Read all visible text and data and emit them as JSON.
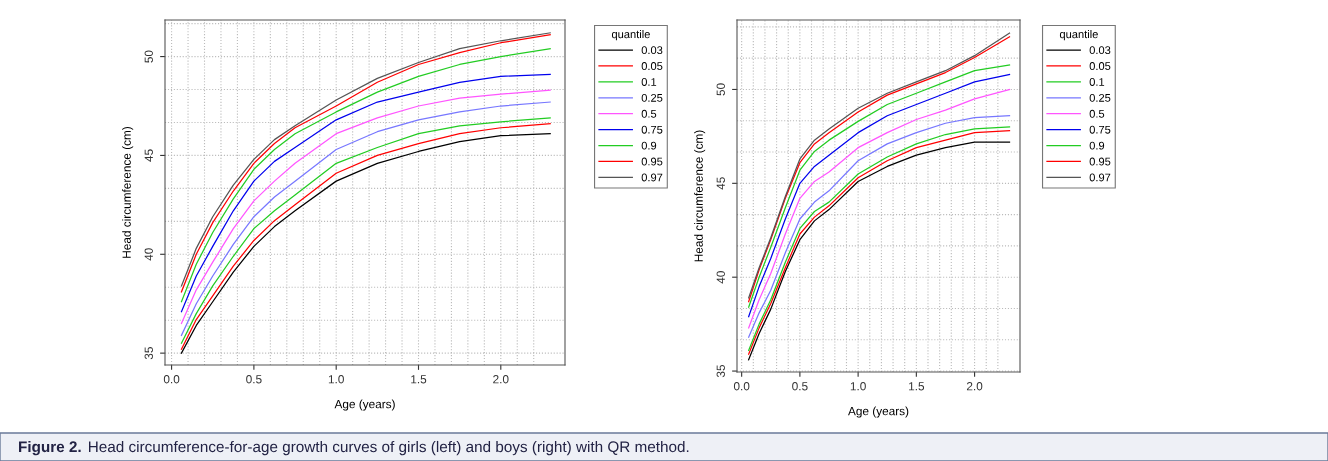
{
  "chart_data": [
    {
      "type": "line",
      "xlabel": "Age (years)",
      "ylabel": "Head circumference (cm)",
      "legend_title": "quantile",
      "legend": "right",
      "grid": true,
      "line_style": "solid",
      "x": [
        0.06,
        0.15,
        0.25,
        0.375,
        0.5,
        0.625,
        0.75,
        1.0,
        1.25,
        1.5,
        1.75,
        2.0,
        2.3
      ],
      "xlim": [
        -0.04,
        2.39
      ],
      "ylim": [
        34.4,
        51.85
      ],
      "xticks": [
        {
          "value": 0,
          "label": "0.0"
        },
        {
          "value": 0.5,
          "label": "0.5"
        },
        {
          "value": 1,
          "label": "1.0"
        },
        {
          "value": 1.5,
          "label": "1.5"
        },
        {
          "value": 2,
          "label": "2.0"
        }
      ],
      "yticks": [
        35,
        40,
        45,
        50
      ],
      "series": [
        {
          "name": "0.03",
          "color": "#000000",
          "values": [
            35.0,
            36.4,
            37.6,
            39.1,
            40.4,
            41.4,
            42.2,
            43.7,
            44.6,
            45.2,
            45.7,
            46.0,
            46.1
          ]
        },
        {
          "name": "0.05",
          "color": "#ff0000",
          "values": [
            35.2,
            36.7,
            37.9,
            39.4,
            40.7,
            41.7,
            42.5,
            44.1,
            45.0,
            45.6,
            46.1,
            46.4,
            46.6
          ]
        },
        {
          "name": "0.1",
          "color": "#22cc22",
          "values": [
            35.5,
            37.0,
            38.4,
            39.9,
            41.3,
            42.2,
            43.0,
            44.6,
            45.4,
            46.1,
            46.5,
            46.7,
            46.9
          ]
        },
        {
          "name": "0.25",
          "color": "#7777ff",
          "values": [
            35.9,
            37.5,
            38.9,
            40.5,
            41.9,
            42.9,
            43.7,
            45.3,
            46.2,
            46.8,
            47.2,
            47.5,
            47.7
          ]
        },
        {
          "name": "0.5",
          "color": "#ff55ff",
          "values": [
            36.5,
            38.2,
            39.6,
            41.3,
            42.7,
            43.7,
            44.6,
            46.1,
            46.9,
            47.5,
            47.9,
            48.1,
            48.3
          ]
        },
        {
          "name": "0.75",
          "color": "#0000ee",
          "values": [
            37.1,
            38.9,
            40.4,
            42.2,
            43.7,
            44.7,
            45.4,
            46.8,
            47.7,
            48.2,
            48.7,
            49.0,
            49.1
          ]
        },
        {
          "name": "0.9",
          "color": "#22cc22",
          "values": [
            37.6,
            39.5,
            41.1,
            42.8,
            44.3,
            45.3,
            46.1,
            47.2,
            48.2,
            49.0,
            49.6,
            50.0,
            50.4
          ]
        },
        {
          "name": "0.95",
          "color": "#ff0000",
          "values": [
            38.1,
            40.0,
            41.6,
            43.2,
            44.6,
            45.6,
            46.4,
            47.5,
            48.7,
            49.6,
            50.2,
            50.7,
            51.1
          ]
        },
        {
          "name": "0.97",
          "color": "#555555",
          "values": [
            38.4,
            40.3,
            41.9,
            43.5,
            44.8,
            45.8,
            46.5,
            47.8,
            48.9,
            49.7,
            50.4,
            50.8,
            51.2
          ]
        }
      ],
      "annotations": [
        "Figure 2.",
        "Head circumference-for-age growth curves of girls (left) and boys (right) with QR method."
      ]
    },
    {
      "type": "line",
      "xlabel": "Age (years)",
      "ylabel": "Head circumference (cm)",
      "legend_title": "quantile",
      "legend": "right",
      "grid": true,
      "line_style": "solid",
      "x": [
        0.06,
        0.15,
        0.25,
        0.375,
        0.5,
        0.625,
        0.75,
        1.0,
        1.25,
        1.5,
        1.75,
        2.0,
        2.3
      ],
      "xlim": [
        -0.04,
        2.39
      ],
      "ylim": [
        34.95,
        53.7
      ],
      "xticks": [
        {
          "value": 0,
          "label": "0.0"
        },
        {
          "value": 0.5,
          "label": "0.5"
        },
        {
          "value": 1,
          "label": "1.0"
        },
        {
          "value": 1.5,
          "label": "1.5"
        },
        {
          "value": 2,
          "label": "2.0"
        }
      ],
      "yticks": [
        35,
        40,
        45,
        50
      ],
      "series": [
        {
          "name": "0.03",
          "color": "#000000",
          "values": [
            35.6,
            37.0,
            38.3,
            40.3,
            42.0,
            43.0,
            43.6,
            45.1,
            45.9,
            46.5,
            46.9,
            47.2,
            47.2
          ]
        },
        {
          "name": "0.05",
          "color": "#ff0000",
          "values": [
            35.9,
            37.3,
            38.6,
            40.5,
            42.3,
            43.2,
            43.8,
            45.3,
            46.2,
            46.9,
            47.3,
            47.7,
            47.8
          ]
        },
        {
          "name": "0.1",
          "color": "#22cc22",
          "values": [
            36.1,
            37.5,
            38.8,
            40.8,
            42.6,
            43.5,
            44.0,
            45.5,
            46.4,
            47.1,
            47.6,
            47.9,
            48.0
          ]
        },
        {
          "name": "0.25",
          "color": "#7777ff",
          "values": [
            36.8,
            38.1,
            39.3,
            41.3,
            43.1,
            44.0,
            44.6,
            46.2,
            47.1,
            47.7,
            48.2,
            48.5,
            48.6
          ]
        },
        {
          "name": "0.5",
          "color": "#ff55ff",
          "values": [
            37.3,
            38.8,
            40.2,
            42.3,
            44.2,
            45.1,
            45.6,
            46.9,
            47.7,
            48.4,
            48.9,
            49.5,
            50.0
          ]
        },
        {
          "name": "0.75",
          "color": "#0000ee",
          "values": [
            37.9,
            39.5,
            41.0,
            43.1,
            45.0,
            45.9,
            46.5,
            47.7,
            48.6,
            49.2,
            49.8,
            50.4,
            50.8
          ]
        },
        {
          "name": "0.9",
          "color": "#22cc22",
          "values": [
            38.4,
            40.0,
            41.6,
            43.7,
            45.7,
            46.7,
            47.3,
            48.3,
            49.2,
            49.8,
            50.4,
            51.0,
            51.3
          ]
        },
        {
          "name": "0.95",
          "color": "#ff0000",
          "values": [
            38.7,
            40.4,
            42.0,
            44.2,
            46.1,
            47.1,
            47.7,
            48.8,
            49.7,
            50.3,
            50.9,
            51.7,
            52.8
          ]
        },
        {
          "name": "0.97",
          "color": "#555555",
          "values": [
            38.9,
            40.5,
            42.1,
            44.3,
            46.3,
            47.3,
            47.9,
            49.0,
            49.8,
            50.4,
            51.0,
            51.8,
            53.0
          ]
        }
      ]
    }
  ]
}
